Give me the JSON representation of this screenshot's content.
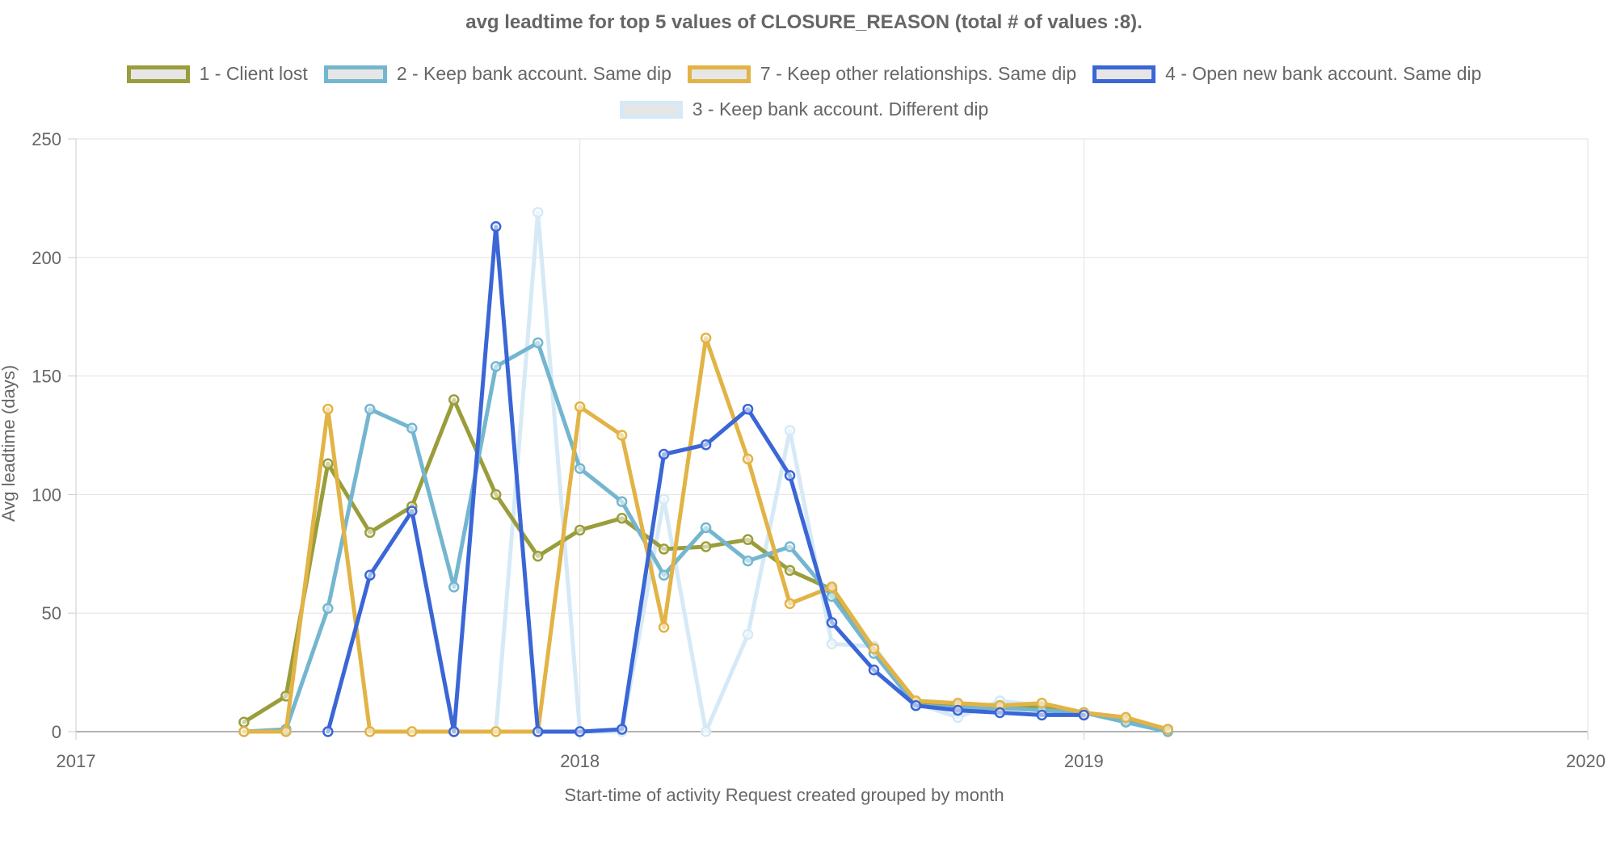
{
  "chart_data": {
    "type": "line",
    "title": "avg leadtime for top 5 values of CLOSURE_REASON (total # of values :8).",
    "xlabel": "Start-time of activity Request created grouped by month",
    "ylabel": "Avg leadtime (days)",
    "xlim": [
      2017,
      2020
    ],
    "ylim": [
      0,
      250
    ],
    "x_ticks": [
      "2017",
      "2018",
      "2019",
      "2020"
    ],
    "y_ticks": [
      "0",
      "50",
      "100",
      "150",
      "200",
      "250"
    ],
    "grid": true,
    "legend_position": "top",
    "series": [
      {
        "name": "1 - Client lost",
        "color": "#9a9d3b",
        "points": [
          {
            "x": "2017-05",
            "y": 4
          },
          {
            "x": "2017-06",
            "y": 15
          },
          {
            "x": "2017-07",
            "y": 113
          },
          {
            "x": "2017-08",
            "y": 84
          },
          {
            "x": "2017-09",
            "y": 95
          },
          {
            "x": "2017-10",
            "y": 140
          },
          {
            "x": "2017-11",
            "y": 100
          },
          {
            "x": "2017-12",
            "y": 74
          },
          {
            "x": "2018-01",
            "y": 85
          },
          {
            "x": "2018-02",
            "y": 90
          },
          {
            "x": "2018-03",
            "y": 77
          },
          {
            "x": "2018-04",
            "y": 78
          },
          {
            "x": "2018-05",
            "y": 81
          },
          {
            "x": "2018-06",
            "y": 68
          },
          {
            "x": "2018-07",
            "y": 60
          },
          {
            "x": "2018-08",
            "y": 35
          },
          {
            "x": "2018-09",
            "y": 12
          },
          {
            "x": "2018-10",
            "y": 11
          },
          {
            "x": "2018-11",
            "y": 11
          },
          {
            "x": "2018-12",
            "y": 10
          },
          {
            "x": "2019-01",
            "y": 8
          },
          {
            "x": "2019-02",
            "y": 5
          },
          {
            "x": "2019-03",
            "y": 1
          }
        ]
      },
      {
        "name": "2 - Keep bank account. Same dip",
        "color": "#74b6cf",
        "points": [
          {
            "x": "2017-05",
            "y": 0
          },
          {
            "x": "2017-06",
            "y": 1
          },
          {
            "x": "2017-07",
            "y": 52
          },
          {
            "x": "2017-08",
            "y": 136
          },
          {
            "x": "2017-09",
            "y": 128
          },
          {
            "x": "2017-10",
            "y": 61
          },
          {
            "x": "2017-11",
            "y": 154
          },
          {
            "x": "2017-12",
            "y": 164
          },
          {
            "x": "2018-01",
            "y": 111
          },
          {
            "x": "2018-02",
            "y": 97
          },
          {
            "x": "2018-03",
            "y": 66
          },
          {
            "x": "2018-04",
            "y": 86
          },
          {
            "x": "2018-05",
            "y": 72
          },
          {
            "x": "2018-06",
            "y": 78
          },
          {
            "x": "2018-07",
            "y": 57
          },
          {
            "x": "2018-08",
            "y": 33
          },
          {
            "x": "2018-09",
            "y": 11
          },
          {
            "x": "2018-10",
            "y": 10
          },
          {
            "x": "2018-11",
            "y": 10
          },
          {
            "x": "2018-12",
            "y": 9
          },
          {
            "x": "2019-01",
            "y": 8
          },
          {
            "x": "2019-02",
            "y": 4
          },
          {
            "x": "2019-03",
            "y": 0
          }
        ]
      },
      {
        "name": "7 - Keep other relationships. Same dip",
        "color": "#e2b345",
        "points": [
          {
            "x": "2017-05",
            "y": 0
          },
          {
            "x": "2017-06",
            "y": 0
          },
          {
            "x": "2017-07",
            "y": 136
          },
          {
            "x": "2017-08",
            "y": 0
          },
          {
            "x": "2017-09",
            "y": 0
          },
          {
            "x": "2017-10",
            "y": 0
          },
          {
            "x": "2017-11",
            "y": 0
          },
          {
            "x": "2017-12",
            "y": 0
          },
          {
            "x": "2018-01",
            "y": 137
          },
          {
            "x": "2018-02",
            "y": 125
          },
          {
            "x": "2018-03",
            "y": 44
          },
          {
            "x": "2018-04",
            "y": 166
          },
          {
            "x": "2018-05",
            "y": 115
          },
          {
            "x": "2018-06",
            "y": 54
          },
          {
            "x": "2018-07",
            "y": 61
          },
          {
            "x": "2018-08",
            "y": 35
          },
          {
            "x": "2018-09",
            "y": 13
          },
          {
            "x": "2018-10",
            "y": 12
          },
          {
            "x": "2018-11",
            "y": 11
          },
          {
            "x": "2018-12",
            "y": 12
          },
          {
            "x": "2019-01",
            "y": 8
          },
          {
            "x": "2019-02",
            "y": 6
          },
          {
            "x": "2019-03",
            "y": 1
          }
        ]
      },
      {
        "name": "4 - Open new bank account. Same dip",
        "color": "#3a66d6",
        "points": [
          {
            "x": "2017-07",
            "y": 0
          },
          {
            "x": "2017-08",
            "y": 66
          },
          {
            "x": "2017-09",
            "y": 93
          },
          {
            "x": "2017-10",
            "y": 0
          },
          {
            "x": "2017-11",
            "y": 213
          },
          {
            "x": "2017-12",
            "y": 0
          },
          {
            "x": "2018-01",
            "y": 0
          },
          {
            "x": "2018-02",
            "y": 1
          },
          {
            "x": "2018-03",
            "y": 117
          },
          {
            "x": "2018-04",
            "y": 121
          },
          {
            "x": "2018-05",
            "y": 136
          },
          {
            "x": "2018-06",
            "y": 108
          },
          {
            "x": "2018-07",
            "y": 46
          },
          {
            "x": "2018-08",
            "y": 26
          },
          {
            "x": "2018-09",
            "y": 11
          },
          {
            "x": "2018-10",
            "y": 9
          },
          {
            "x": "2018-11",
            "y": 8
          },
          {
            "x": "2018-12",
            "y": 7
          },
          {
            "x": "2019-01",
            "y": 7
          }
        ]
      },
      {
        "name": "3 - Keep bank account. Different dip",
        "color": "#d6e9f6",
        "points": [
          {
            "x": "2017-11",
            "y": 0
          },
          {
            "x": "2017-12",
            "y": 219
          },
          {
            "x": "2018-01",
            "y": 0
          },
          {
            "x": "2018-02",
            "y": 0
          },
          {
            "x": "2018-03",
            "y": 98
          },
          {
            "x": "2018-04",
            "y": 0
          },
          {
            "x": "2018-05",
            "y": 41
          },
          {
            "x": "2018-06",
            "y": 127
          },
          {
            "x": "2018-07",
            "y": 37
          },
          {
            "x": "2018-08",
            "y": 36
          },
          {
            "x": "2018-09",
            "y": 12
          },
          {
            "x": "2018-10",
            "y": 6
          },
          {
            "x": "2018-11",
            "y": 13
          },
          {
            "x": "2018-12",
            "y": 11
          },
          {
            "x": "2019-01",
            "y": 8
          }
        ]
      }
    ]
  }
}
